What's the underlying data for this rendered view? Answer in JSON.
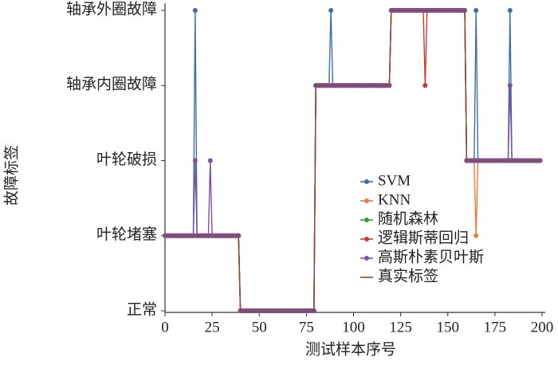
{
  "chart_data": {
    "type": "line",
    "xlabel": "测试样本序号",
    "ylabel": "故障标签",
    "xlim": [
      0,
      200
    ],
    "xticks": [
      0,
      25,
      50,
      75,
      100,
      125,
      150,
      175,
      200
    ],
    "ylim": [
      0,
      4
    ],
    "yticks": [
      {
        "value": 0,
        "label": "正常"
      },
      {
        "value": 1,
        "label": "叶轮堵塞"
      },
      {
        "value": 2,
        "label": "叶轮破损"
      },
      {
        "value": 3,
        "label": "轴承内圈故障"
      },
      {
        "value": 4,
        "label": "轴承外圈故障"
      }
    ],
    "legend": "center-right",
    "x": [
      0,
      1,
      2,
      3,
      4,
      5,
      6,
      7,
      8,
      9,
      10,
      11,
      12,
      13,
      14,
      15,
      16,
      17,
      18,
      19,
      20,
      21,
      22,
      23,
      24,
      25,
      26,
      27,
      28,
      29,
      30,
      31,
      32,
      33,
      34,
      35,
      36,
      37,
      38,
      39,
      40,
      41,
      42,
      43,
      44,
      45,
      46,
      47,
      48,
      49,
      50,
      51,
      52,
      53,
      54,
      55,
      56,
      57,
      58,
      59,
      60,
      61,
      62,
      63,
      64,
      65,
      66,
      67,
      68,
      69,
      70,
      71,
      72,
      73,
      74,
      75,
      76,
      77,
      78,
      79,
      80,
      81,
      82,
      83,
      84,
      85,
      86,
      87,
      88,
      89,
      90,
      91,
      92,
      93,
      94,
      95,
      96,
      97,
      98,
      99,
      100,
      101,
      102,
      103,
      104,
      105,
      106,
      107,
      108,
      109,
      110,
      111,
      112,
      113,
      114,
      115,
      116,
      117,
      118,
      119,
      120,
      121,
      122,
      123,
      124,
      125,
      126,
      127,
      128,
      129,
      130,
      131,
      132,
      133,
      134,
      135,
      136,
      137,
      138,
      139,
      140,
      141,
      142,
      143,
      144,
      145,
      146,
      147,
      148,
      149,
      150,
      151,
      152,
      153,
      154,
      155,
      156,
      157,
      158,
      159,
      160,
      161,
      162,
      163,
      164,
      165,
      166,
      167,
      168,
      169,
      170,
      171,
      172,
      173,
      174,
      175,
      176,
      177,
      178,
      179,
      180,
      181,
      182,
      183,
      184,
      185,
      186,
      187,
      188,
      189,
      190,
      191,
      192,
      193,
      194,
      195,
      196,
      197,
      198,
      199
    ],
    "series": [
      {
        "name": "SVM",
        "color": "#3d6ea8",
        "marker": true,
        "values": [
          1,
          1,
          1,
          1,
          1,
          1,
          1,
          1,
          1,
          1,
          1,
          1,
          1,
          1,
          1,
          1,
          4,
          1,
          1,
          1,
          1,
          1,
          1,
          1,
          1,
          1,
          1,
          1,
          1,
          1,
          1,
          1,
          1,
          1,
          1,
          1,
          1,
          1,
          1,
          1,
          0,
          0,
          0,
          0,
          0,
          0,
          0,
          0,
          0,
          0,
          0,
          0,
          0,
          0,
          0,
          0,
          0,
          0,
          0,
          0,
          0,
          0,
          0,
          0,
          0,
          0,
          0,
          0,
          0,
          0,
          0,
          0,
          0,
          0,
          0,
          0,
          0,
          0,
          0,
          0,
          3,
          3,
          3,
          3,
          3,
          3,
          3,
          3,
          4,
          3,
          3,
          3,
          3,
          3,
          3,
          3,
          3,
          3,
          3,
          3,
          3,
          3,
          3,
          3,
          3,
          3,
          3,
          3,
          3,
          3,
          3,
          3,
          3,
          3,
          3,
          3,
          3,
          3,
          3,
          3,
          4,
          4,
          4,
          4,
          4,
          4,
          4,
          4,
          4,
          4,
          4,
          4,
          4,
          4,
          4,
          4,
          4,
          4,
          4,
          4,
          4,
          4,
          4,
          4,
          4,
          4,
          4,
          4,
          4,
          4,
          4,
          4,
          4,
          4,
          4,
          4,
          4,
          4,
          4,
          4,
          2,
          2,
          2,
          2,
          2,
          4,
          2,
          2,
          2,
          2,
          2,
          2,
          2,
          2,
          2,
          2,
          2,
          2,
          2,
          2,
          2,
          2,
          2,
          4,
          2,
          2,
          2,
          2,
          2,
          2,
          2,
          2,
          2,
          2,
          2,
          2,
          2,
          2,
          2,
          2
        ]
      },
      {
        "name": "KNN",
        "color": "#ee7a34",
        "marker": true,
        "values": [
          1,
          1,
          1,
          1,
          1,
          1,
          1,
          1,
          1,
          1,
          1,
          1,
          1,
          1,
          1,
          1,
          1,
          1,
          1,
          1,
          1,
          1,
          1,
          1,
          1,
          1,
          1,
          1,
          1,
          1,
          1,
          1,
          1,
          1,
          1,
          1,
          1,
          1,
          1,
          1,
          0,
          0,
          0,
          0,
          0,
          0,
          0,
          0,
          0,
          0,
          0,
          0,
          0,
          0,
          0,
          0,
          0,
          0,
          0,
          0,
          0,
          0,
          0,
          0,
          0,
          0,
          0,
          0,
          0,
          0,
          0,
          0,
          0,
          0,
          0,
          0,
          0,
          0,
          0,
          0,
          3,
          3,
          3,
          3,
          3,
          3,
          3,
          3,
          3,
          3,
          3,
          3,
          3,
          3,
          3,
          3,
          3,
          3,
          3,
          3,
          3,
          3,
          3,
          3,
          3,
          3,
          3,
          3,
          3,
          3,
          3,
          3,
          3,
          3,
          3,
          3,
          3,
          3,
          3,
          3,
          4,
          4,
          4,
          4,
          4,
          4,
          4,
          4,
          4,
          4,
          4,
          4,
          4,
          4,
          4,
          4,
          4,
          4,
          4,
          4,
          4,
          4,
          4,
          4,
          4,
          4,
          4,
          4,
          4,
          4,
          4,
          4,
          4,
          4,
          4,
          4,
          4,
          4,
          4,
          4,
          2,
          2,
          2,
          2,
          2,
          1,
          2,
          2,
          2,
          2,
          2,
          2,
          2,
          2,
          2,
          2,
          2,
          2,
          2,
          2,
          2,
          2,
          2,
          2,
          2,
          2,
          2,
          2,
          2,
          2,
          2,
          2,
          2,
          2,
          2,
          2,
          2,
          2,
          2,
          2
        ]
      },
      {
        "name": "随机森林",
        "color": "#2ca02c",
        "marker": true,
        "values": [
          1,
          1,
          1,
          1,
          1,
          1,
          1,
          1,
          1,
          1,
          1,
          1,
          1,
          1,
          1,
          1,
          1,
          1,
          1,
          1,
          1,
          1,
          1,
          1,
          1,
          1,
          1,
          1,
          1,
          1,
          1,
          1,
          1,
          1,
          1,
          1,
          1,
          1,
          1,
          1,
          0,
          0,
          0,
          0,
          0,
          0,
          0,
          0,
          0,
          0,
          0,
          0,
          0,
          0,
          0,
          0,
          0,
          0,
          0,
          0,
          0,
          0,
          0,
          0,
          0,
          0,
          0,
          0,
          0,
          0,
          0,
          0,
          0,
          0,
          0,
          0,
          0,
          0,
          0,
          0,
          3,
          3,
          3,
          3,
          3,
          3,
          3,
          3,
          3,
          3,
          3,
          3,
          3,
          3,
          3,
          3,
          3,
          3,
          3,
          3,
          3,
          3,
          3,
          3,
          3,
          3,
          3,
          3,
          3,
          3,
          3,
          3,
          3,
          3,
          3,
          3,
          3,
          3,
          3,
          3,
          4,
          4,
          4,
          4,
          4,
          4,
          4,
          4,
          4,
          4,
          4,
          4,
          4,
          4,
          4,
          4,
          4,
          4,
          4,
          4,
          4,
          4,
          4,
          4,
          4,
          4,
          4,
          4,
          4,
          4,
          4,
          4,
          4,
          4,
          4,
          4,
          4,
          4,
          4,
          4,
          2,
          2,
          2,
          2,
          2,
          2,
          2,
          2,
          2,
          2,
          2,
          2,
          2,
          2,
          2,
          2,
          2,
          2,
          2,
          2,
          2,
          2,
          2,
          2,
          2,
          2,
          2,
          2,
          2,
          2,
          2,
          2,
          2,
          2,
          2,
          2,
          2,
          2,
          2,
          2
        ]
      },
      {
        "name": "逻辑斯蒂回归",
        "color": "#d03a2c",
        "marker": true,
        "values": [
          1,
          1,
          1,
          1,
          1,
          1,
          1,
          1,
          1,
          1,
          1,
          1,
          1,
          1,
          1,
          1,
          1,
          1,
          1,
          1,
          1,
          1,
          1,
          1,
          1,
          1,
          1,
          1,
          1,
          1,
          1,
          1,
          1,
          1,
          1,
          1,
          1,
          1,
          1,
          1,
          0,
          0,
          0,
          0,
          0,
          0,
          0,
          0,
          0,
          0,
          0,
          0,
          0,
          0,
          0,
          0,
          0,
          0,
          0,
          0,
          0,
          0,
          0,
          0,
          0,
          0,
          0,
          0,
          0,
          0,
          0,
          0,
          0,
          0,
          0,
          0,
          0,
          0,
          0,
          0,
          3,
          3,
          3,
          3,
          3,
          3,
          3,
          3,
          3,
          3,
          3,
          3,
          3,
          3,
          3,
          3,
          3,
          3,
          3,
          3,
          3,
          3,
          3,
          3,
          3,
          3,
          3,
          3,
          3,
          3,
          3,
          3,
          3,
          3,
          3,
          3,
          3,
          3,
          3,
          3,
          4,
          4,
          4,
          4,
          4,
          4,
          4,
          4,
          4,
          4,
          4,
          4,
          4,
          4,
          4,
          4,
          4,
          4,
          3,
          4,
          4,
          4,
          4,
          4,
          4,
          4,
          4,
          4,
          4,
          4,
          4,
          4,
          4,
          4,
          4,
          4,
          4,
          4,
          4,
          4,
          2,
          2,
          2,
          2,
          2,
          2,
          2,
          2,
          2,
          2,
          2,
          2,
          2,
          2,
          2,
          2,
          2,
          2,
          2,
          2,
          2,
          2,
          2,
          2,
          2,
          2,
          2,
          2,
          2,
          2,
          2,
          2,
          2,
          2,
          2,
          2,
          2,
          2,
          2,
          2
        ]
      },
      {
        "name": "高斯朴素贝叶斯",
        "color": "#7b52a6",
        "marker": true,
        "values": [
          1,
          1,
          1,
          1,
          1,
          1,
          1,
          1,
          1,
          1,
          1,
          1,
          1,
          1,
          1,
          1,
          2,
          1,
          1,
          1,
          1,
          1,
          1,
          1,
          2,
          1,
          1,
          1,
          1,
          1,
          1,
          1,
          1,
          1,
          1,
          1,
          1,
          1,
          1,
          1,
          0,
          0,
          0,
          0,
          0,
          0,
          0,
          0,
          0,
          0,
          0,
          0,
          0,
          0,
          0,
          0,
          0,
          0,
          0,
          0,
          0,
          0,
          0,
          0,
          0,
          0,
          0,
          0,
          0,
          0,
          0,
          0,
          0,
          0,
          0,
          0,
          0,
          0,
          0,
          0,
          3,
          3,
          3,
          3,
          3,
          3,
          3,
          3,
          3,
          3,
          3,
          3,
          3,
          3,
          3,
          3,
          3,
          3,
          3,
          3,
          3,
          3,
          3,
          3,
          3,
          3,
          3,
          3,
          3,
          3,
          3,
          3,
          3,
          3,
          3,
          3,
          3,
          3,
          3,
          3,
          4,
          4,
          4,
          4,
          4,
          4,
          4,
          4,
          4,
          4,
          4,
          4,
          4,
          4,
          4,
          4,
          4,
          4,
          4,
          4,
          4,
          4,
          4,
          4,
          4,
          4,
          4,
          4,
          4,
          4,
          4,
          4,
          4,
          4,
          4,
          4,
          4,
          4,
          4,
          4,
          2,
          2,
          2,
          2,
          2,
          2,
          2,
          2,
          2,
          2,
          2,
          2,
          2,
          2,
          2,
          2,
          2,
          2,
          2,
          2,
          2,
          2,
          2,
          3,
          2,
          2,
          2,
          2,
          2,
          2,
          2,
          2,
          2,
          2,
          2,
          2,
          2,
          2,
          2,
          2
        ]
      },
      {
        "name": "真实标签",
        "color": "#8c4a2f",
        "marker": false,
        "values": [
          1,
          1,
          1,
          1,
          1,
          1,
          1,
          1,
          1,
          1,
          1,
          1,
          1,
          1,
          1,
          1,
          1,
          1,
          1,
          1,
          1,
          1,
          1,
          1,
          1,
          1,
          1,
          1,
          1,
          1,
          1,
          1,
          1,
          1,
          1,
          1,
          1,
          1,
          1,
          1,
          0,
          0,
          0,
          0,
          0,
          0,
          0,
          0,
          0,
          0,
          0,
          0,
          0,
          0,
          0,
          0,
          0,
          0,
          0,
          0,
          0,
          0,
          0,
          0,
          0,
          0,
          0,
          0,
          0,
          0,
          0,
          0,
          0,
          0,
          0,
          0,
          0,
          0,
          0,
          0,
          3,
          3,
          3,
          3,
          3,
          3,
          3,
          3,
          3,
          3,
          3,
          3,
          3,
          3,
          3,
          3,
          3,
          3,
          3,
          3,
          3,
          3,
          3,
          3,
          3,
          3,
          3,
          3,
          3,
          3,
          3,
          3,
          3,
          3,
          3,
          3,
          3,
          3,
          3,
          3,
          4,
          4,
          4,
          4,
          4,
          4,
          4,
          4,
          4,
          4,
          4,
          4,
          4,
          4,
          4,
          4,
          4,
          4,
          4,
          4,
          4,
          4,
          4,
          4,
          4,
          4,
          4,
          4,
          4,
          4,
          4,
          4,
          4,
          4,
          4,
          4,
          4,
          4,
          4,
          4,
          2,
          2,
          2,
          2,
          2,
          2,
          2,
          2,
          2,
          2,
          2,
          2,
          2,
          2,
          2,
          2,
          2,
          2,
          2,
          2,
          2,
          2,
          2,
          2,
          2,
          2,
          2,
          2,
          2,
          2,
          2,
          2,
          2,
          2,
          2,
          2,
          2,
          2,
          2,
          2
        ]
      }
    ]
  }
}
